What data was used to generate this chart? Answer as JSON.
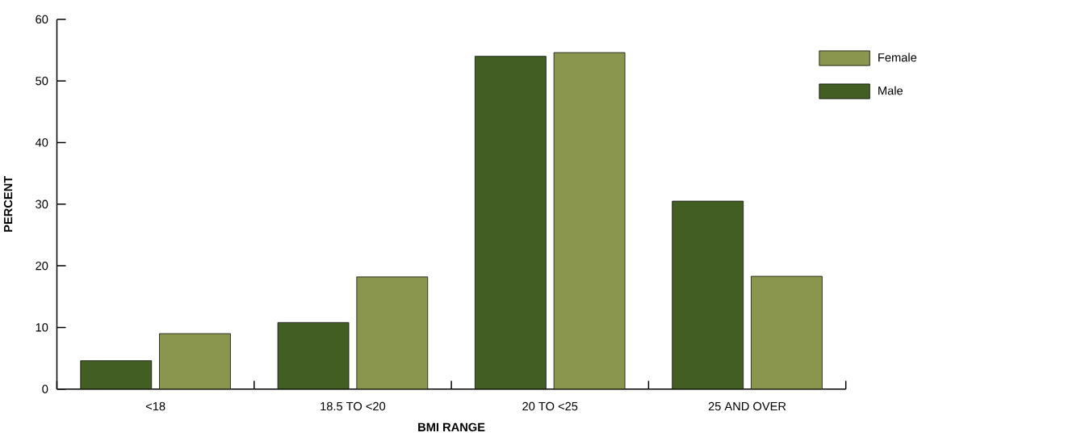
{
  "chart_data": {
    "type": "bar",
    "xlabel": "BMI RANGE",
    "ylabel": "PERCENT",
    "categories": [
      "<18",
      "18.5 TO <20",
      "20 TO <25",
      "25 AND OVER"
    ],
    "series": [
      {
        "name": "Male",
        "color": "#435e22",
        "values": [
          4.6,
          10.8,
          54.0,
          30.5
        ]
      },
      {
        "name": "Female",
        "color": "#8a964e",
        "values": [
          9.0,
          18.2,
          54.6,
          18.3
        ]
      }
    ],
    "ylim": [
      0,
      60
    ],
    "yticks": [
      0,
      10,
      20,
      30,
      40,
      50,
      60
    ],
    "legend": "top right"
  }
}
